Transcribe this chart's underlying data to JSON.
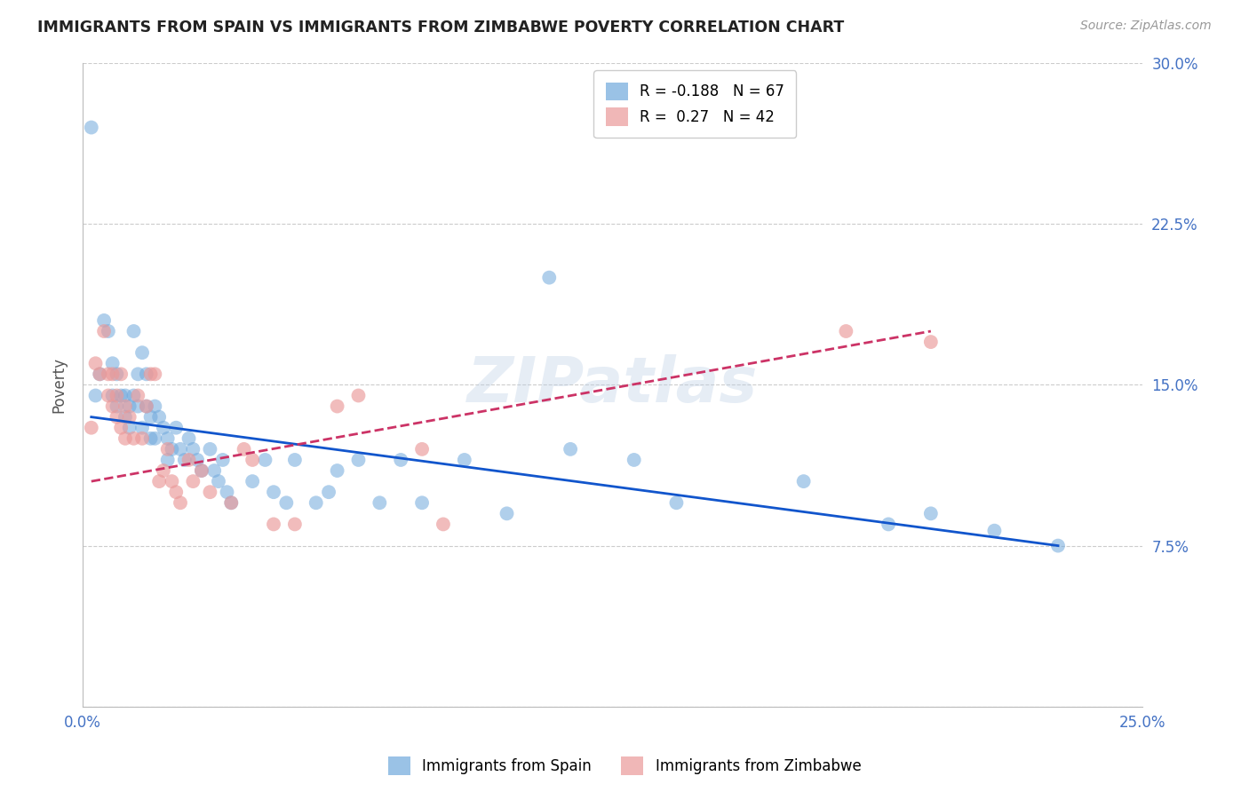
{
  "title": "IMMIGRANTS FROM SPAIN VS IMMIGRANTS FROM ZIMBABWE POVERTY CORRELATION CHART",
  "source": "Source: ZipAtlas.com",
  "ylabel": "Poverty",
  "x_min": 0.0,
  "x_max": 0.25,
  "y_min": 0.0,
  "y_max": 0.3,
  "x_ticks": [
    0.0,
    0.05,
    0.1,
    0.15,
    0.2,
    0.25
  ],
  "y_ticks": [
    0.0,
    0.075,
    0.15,
    0.225,
    0.3
  ],
  "spain_color": "#6fa8dc",
  "zimbabwe_color": "#ea9999",
  "spain_R": -0.188,
  "spain_N": 67,
  "zimbabwe_R": 0.27,
  "zimbabwe_N": 42,
  "spain_scatter": [
    [
      0.002,
      0.27
    ],
    [
      0.003,
      0.145
    ],
    [
      0.004,
      0.155
    ],
    [
      0.005,
      0.18
    ],
    [
      0.006,
      0.175
    ],
    [
      0.007,
      0.16
    ],
    [
      0.007,
      0.145
    ],
    [
      0.008,
      0.155
    ],
    [
      0.008,
      0.14
    ],
    [
      0.009,
      0.145
    ],
    [
      0.01,
      0.145
    ],
    [
      0.01,
      0.135
    ],
    [
      0.011,
      0.13
    ],
    [
      0.011,
      0.14
    ],
    [
      0.012,
      0.175
    ],
    [
      0.012,
      0.145
    ],
    [
      0.013,
      0.155
    ],
    [
      0.013,
      0.14
    ],
    [
      0.014,
      0.165
    ],
    [
      0.014,
      0.13
    ],
    [
      0.015,
      0.155
    ],
    [
      0.015,
      0.14
    ],
    [
      0.016,
      0.125
    ],
    [
      0.016,
      0.135
    ],
    [
      0.017,
      0.14
    ],
    [
      0.017,
      0.125
    ],
    [
      0.018,
      0.135
    ],
    [
      0.019,
      0.13
    ],
    [
      0.02,
      0.125
    ],
    [
      0.02,
      0.115
    ],
    [
      0.021,
      0.12
    ],
    [
      0.022,
      0.13
    ],
    [
      0.023,
      0.12
    ],
    [
      0.024,
      0.115
    ],
    [
      0.025,
      0.125
    ],
    [
      0.026,
      0.12
    ],
    [
      0.027,
      0.115
    ],
    [
      0.028,
      0.11
    ],
    [
      0.03,
      0.12
    ],
    [
      0.031,
      0.11
    ],
    [
      0.032,
      0.105
    ],
    [
      0.033,
      0.115
    ],
    [
      0.034,
      0.1
    ],
    [
      0.035,
      0.095
    ],
    [
      0.04,
      0.105
    ],
    [
      0.043,
      0.115
    ],
    [
      0.045,
      0.1
    ],
    [
      0.048,
      0.095
    ],
    [
      0.05,
      0.115
    ],
    [
      0.055,
      0.095
    ],
    [
      0.058,
      0.1
    ],
    [
      0.06,
      0.11
    ],
    [
      0.065,
      0.115
    ],
    [
      0.07,
      0.095
    ],
    [
      0.075,
      0.115
    ],
    [
      0.08,
      0.095
    ],
    [
      0.09,
      0.115
    ],
    [
      0.1,
      0.09
    ],
    [
      0.11,
      0.2
    ],
    [
      0.115,
      0.12
    ],
    [
      0.13,
      0.115
    ],
    [
      0.14,
      0.095
    ],
    [
      0.17,
      0.105
    ],
    [
      0.19,
      0.085
    ],
    [
      0.2,
      0.09
    ],
    [
      0.215,
      0.082
    ],
    [
      0.23,
      0.075
    ]
  ],
  "zimbabwe_scatter": [
    [
      0.002,
      0.13
    ],
    [
      0.003,
      0.16
    ],
    [
      0.004,
      0.155
    ],
    [
      0.005,
      0.175
    ],
    [
      0.006,
      0.155
    ],
    [
      0.006,
      0.145
    ],
    [
      0.007,
      0.155
    ],
    [
      0.007,
      0.14
    ],
    [
      0.008,
      0.145
    ],
    [
      0.008,
      0.135
    ],
    [
      0.009,
      0.13
    ],
    [
      0.009,
      0.155
    ],
    [
      0.01,
      0.125
    ],
    [
      0.01,
      0.14
    ],
    [
      0.011,
      0.135
    ],
    [
      0.012,
      0.125
    ],
    [
      0.013,
      0.145
    ],
    [
      0.014,
      0.125
    ],
    [
      0.015,
      0.14
    ],
    [
      0.016,
      0.155
    ],
    [
      0.017,
      0.155
    ],
    [
      0.018,
      0.105
    ],
    [
      0.019,
      0.11
    ],
    [
      0.02,
      0.12
    ],
    [
      0.021,
      0.105
    ],
    [
      0.022,
      0.1
    ],
    [
      0.023,
      0.095
    ],
    [
      0.025,
      0.115
    ],
    [
      0.026,
      0.105
    ],
    [
      0.028,
      0.11
    ],
    [
      0.03,
      0.1
    ],
    [
      0.035,
      0.095
    ],
    [
      0.038,
      0.12
    ],
    [
      0.04,
      0.115
    ],
    [
      0.045,
      0.085
    ],
    [
      0.05,
      0.085
    ],
    [
      0.06,
      0.14
    ],
    [
      0.065,
      0.145
    ],
    [
      0.08,
      0.12
    ],
    [
      0.085,
      0.085
    ],
    [
      0.18,
      0.175
    ],
    [
      0.2,
      0.17
    ]
  ],
  "watermark": "ZIPatlas",
  "background_color": "#ffffff",
  "grid_color": "#cccccc",
  "tick_label_color": "#4472c4",
  "title_color": "#222222",
  "trendline_spain_color": "#1155cc",
  "trendline_zimbabwe_color": "#cc3366",
  "spain_trend_x": [
    0.002,
    0.23
  ],
  "spain_trend_y": [
    0.135,
    0.075
  ],
  "zimbabwe_trend_x": [
    0.002,
    0.2
  ],
  "zimbabwe_trend_y": [
    0.105,
    0.175
  ]
}
